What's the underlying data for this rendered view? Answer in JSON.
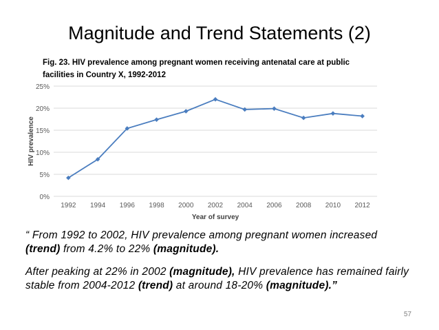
{
  "slide": {
    "title": "Magnitude and Trend Statements (2)",
    "caption_line1": "Fig. 23. HIV prevalence among pregnant women receiving antenatal care at public",
    "caption_line2": "facilities in Country X, 1992-2012",
    "page_number": "57"
  },
  "statement1": {
    "p1": "“ From 1992 to 2002, HIV prevalence among pregnant women increased ",
    "b1": "(trend)",
    "p2": " from 4.2% to 22% ",
    "b2": "(magnitude)."
  },
  "statement2": {
    "p1": "After peaking at 22% in 2002 ",
    "b1": "(magnitude),",
    "p2": " HIV prevalence has remained fairly stable from 2004-2012 ",
    "b2": "(trend)",
    "p3": " at around 18-20% ",
    "b3": "(magnitude).”"
  },
  "colors": {
    "line": "#4a7dbf",
    "marker": "#4a7dbf",
    "grid": "#d9d9d9",
    "axis_text": "#595959"
  },
  "chart_data": {
    "type": "line",
    "title": "Fig. 23. HIV prevalence among pregnant women receiving antenatal care at public facilities in Country X, 1992-2012",
    "xlabel": "Year of survey",
    "ylabel": "HIV prevalence",
    "categories": [
      "1992",
      "1994",
      "1996",
      "1998",
      "2000",
      "2002",
      "2004",
      "2006",
      "2008",
      "2010",
      "2012"
    ],
    "series": [
      {
        "name": "HIV prevalence",
        "values": [
          4.2,
          8.4,
          15.4,
          17.4,
          19.3,
          22.0,
          19.7,
          19.9,
          17.8,
          18.8,
          18.2
        ]
      }
    ],
    "yticks": [
      0,
      5,
      10,
      15,
      20,
      25
    ],
    "ytick_labels": [
      "0%",
      "5%",
      "10%",
      "15%",
      "20%",
      "25%"
    ],
    "ylim": [
      0,
      25
    ],
    "grid": true,
    "legend": "none"
  }
}
